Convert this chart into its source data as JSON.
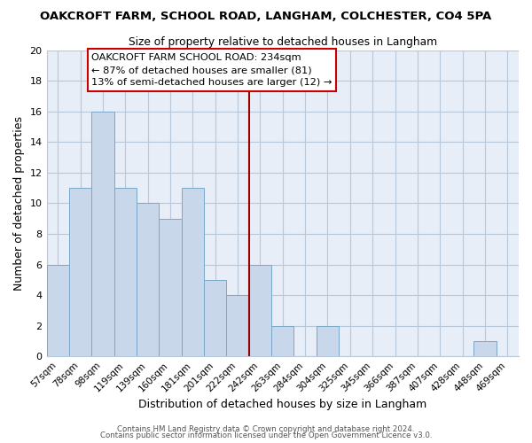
{
  "title": "OAKCROFT FARM, SCHOOL ROAD, LANGHAM, COLCHESTER, CO4 5PA",
  "subtitle": "Size of property relative to detached houses in Langham",
  "xlabel": "Distribution of detached houses by size in Langham",
  "ylabel": "Number of detached properties",
  "bar_labels": [
    "57sqm",
    "78sqm",
    "98sqm",
    "119sqm",
    "139sqm",
    "160sqm",
    "181sqm",
    "201sqm",
    "222sqm",
    "242sqm",
    "263sqm",
    "284sqm",
    "304sqm",
    "325sqm",
    "345sqm",
    "366sqm",
    "387sqm",
    "407sqm",
    "428sqm",
    "448sqm",
    "469sqm"
  ],
  "bar_values": [
    6,
    11,
    16,
    11,
    10,
    9,
    11,
    5,
    4,
    6,
    2,
    0,
    2,
    0,
    0,
    0,
    0,
    0,
    0,
    1,
    0
  ],
  "bar_color": "#c8d8ea",
  "bar_edge_color": "#7aa8c8",
  "reference_line_x": 8.5,
  "reference_line_color": "#990000",
  "ylim": [
    0,
    20
  ],
  "yticks": [
    0,
    2,
    4,
    6,
    8,
    10,
    12,
    14,
    16,
    18,
    20
  ],
  "annotation_title": "OAKCROFT FARM SCHOOL ROAD: 234sqm",
  "annotation_line1": "← 87% of detached houses are smaller (81)",
  "annotation_line2": "13% of semi-detached houses are larger (12) →",
  "annotation_box_color": "#ffffff",
  "annotation_box_edge": "#cc0000",
  "footer1": "Contains HM Land Registry data © Crown copyright and database right 2024.",
  "footer2": "Contains public sector information licensed under the Open Government Licence v3.0.",
  "background_color": "#ffffff",
  "plot_bg_color": "#e8eef8",
  "grid_color": "#b8c8d8"
}
